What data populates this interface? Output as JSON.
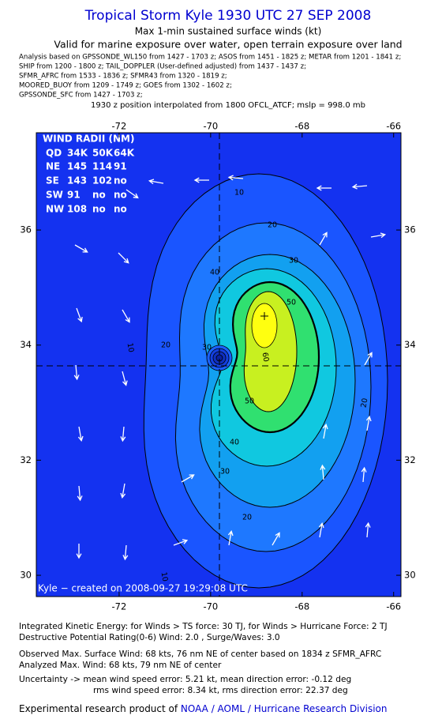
{
  "header": {
    "title": "Tropical Storm Kyle 1930 UTC 27 SEP 2008",
    "subtitle": "Max 1-min sustained surface winds (kt)",
    "validity": "Valid for marine exposure over water, open terrain exposure over land",
    "sources": [
      "Analysis based on  GPSSONDE_WL150 from 1427 - 1703 z;  ASOS from 1451 - 1825 z;  METAR from 1201 - 1841 z;",
      "SHIP from 1200 - 1800 z;  TAIL_DOPPLER (User-defined adjusted) from 1437 - 1437 z;",
      "SFMR_AFRC from 1533 - 1836 z;  SFMR43 from 1320 - 1819 z;",
      "MOORED_BUOY from 1209 - 1749 z;  GOES from 1302 - 1602 z;",
      "GPSSONDE_SFC from 1427 - 1703 z;"
    ],
    "position_note": "1930 z position interpolated from 1800 OFCL_ATCF; mslp = 998.0 mb"
  },
  "map": {
    "xlim": [
      -73.81,
      -65.84
    ],
    "ylim": [
      29.63,
      37.69
    ],
    "xticks": [
      -72,
      -70,
      -68,
      -66
    ],
    "yticks": [
      30,
      32,
      34,
      36
    ],
    "contour_labels": [
      10,
      20,
      30,
      40,
      50,
      60,
      10,
      20,
      30,
      20,
      50,
      40,
      30,
      20,
      10
    ],
    "credit": "Kyle − created on 2008-09-27 19:29:08 UTC",
    "wind_radii": {
      "title": "WIND RADII (NM)",
      "columns": [
        "QD",
        "34K",
        "50K",
        "64K"
      ],
      "rows": [
        [
          "NE",
          "145",
          "114",
          "91"
        ],
        [
          "SE",
          "143",
          "102",
          "no"
        ],
        [
          "SW",
          "91",
          "no",
          "no"
        ],
        [
          "NW",
          "108",
          "no",
          "no"
        ]
      ]
    }
  },
  "footer": {
    "lines": [
      "Integrated Kinetic Energy:  for Winds > TS force: 30 TJ,  for Winds > Hurricane Force: 2 TJ",
      "Destructive Potential Rating(0-6)   Wind: 2.0 , Surge/Waves: 3.0",
      "Observed Max. Surface Wind: 68 kts, 76 nm NE of center based on 1834 z SFMR_AFRC",
      "Analyzed Max. Wind: 68 kts, 79 nm NE of center",
      "Uncertainty -> mean wind speed error: 5.21 kt,   mean direction error:  -0.12 deg",
      "rms wind speed error: 8.34 kt,   rms direction error: 22.37 deg"
    ],
    "product": "Experimental research product of ",
    "division": "NOAA / AOML / Hurricane Research Division"
  }
}
